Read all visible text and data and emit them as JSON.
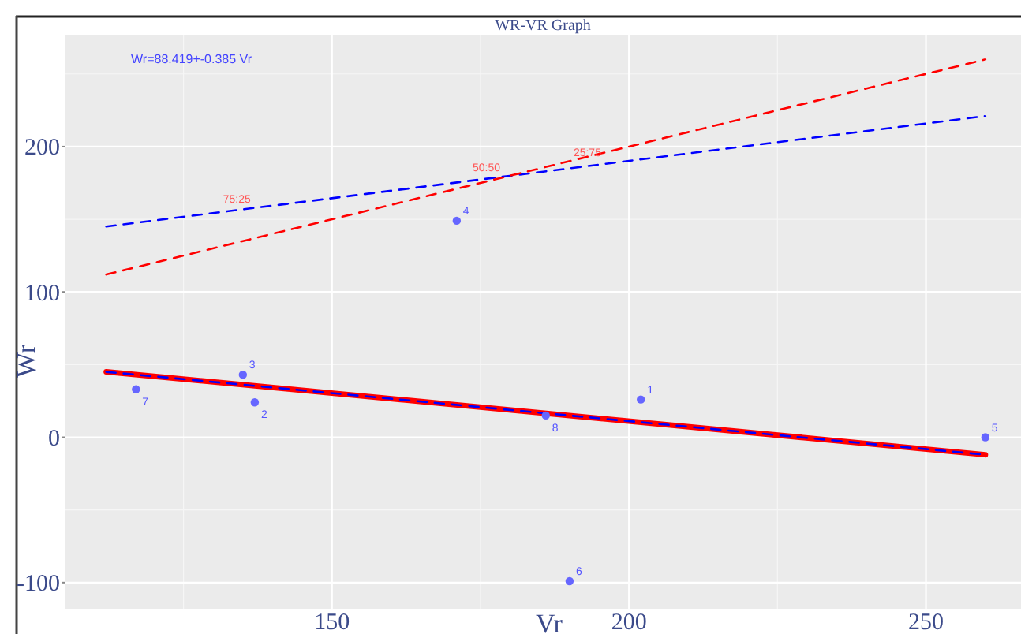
{
  "chart_data": {
    "type": "line",
    "title": "WR-VR Graph",
    "xlabel": "Vr",
    "ylabel": "Wr",
    "xlim": [
      105,
      266
    ],
    "ylim": [
      -118,
      277
    ],
    "xticks": [
      150,
      200,
      250
    ],
    "yticks": [
      -100,
      0,
      100,
      200
    ],
    "grid": true,
    "annotations": [
      "Wr=88.419+-0.385 Vr",
      {
        "text": "75:25",
        "x": 134,
        "y": 158
      },
      {
        "text": "50:50",
        "x": 176,
        "y": 180
      },
      {
        "text": "25:75",
        "x": 193,
        "y": 190
      },
      {
        "text": "1",
        "x": 202,
        "y": 26
      },
      {
        "text": "2",
        "x": 137,
        "y": 24
      },
      {
        "text": "3",
        "x": 135,
        "y": 43
      },
      {
        "text": "4",
        "x": 171,
        "y": 149
      },
      {
        "text": "5",
        "x": 260,
        "y": 0
      },
      {
        "text": "6",
        "x": 190,
        "y": -99
      },
      {
        "text": "7",
        "x": 117,
        "y": 33
      },
      {
        "text": "8",
        "x": 186,
        "y": 15
      }
    ],
    "series": [
      {
        "type": "scatter",
        "color": "#6666ff",
        "marker": "circle",
        "x": [
          202,
          137,
          135,
          171,
          260,
          190,
          117,
          186
        ],
        "values": [
          26,
          24,
          43,
          149,
          0,
          -99,
          33,
          15
        ]
      },
      {
        "color": "#ff0000",
        "line_style": "solid",
        "x": [
          112,
          260
        ],
        "values": [
          45,
          -12
        ]
      },
      {
        "color": "#0000ff",
        "line_style": "dashed",
        "x": [
          112,
          260
        ],
        "values": [
          45,
          -12
        ]
      },
      {
        "color": "#0000ff",
        "line_style": "dashed",
        "x": [
          112,
          260
        ],
        "values": [
          145,
          221
        ]
      },
      {
        "color": "#ff0000",
        "line_style": "dashed",
        "x": [
          112,
          260
        ],
        "values": [
          112,
          260
        ]
      }
    ]
  }
}
